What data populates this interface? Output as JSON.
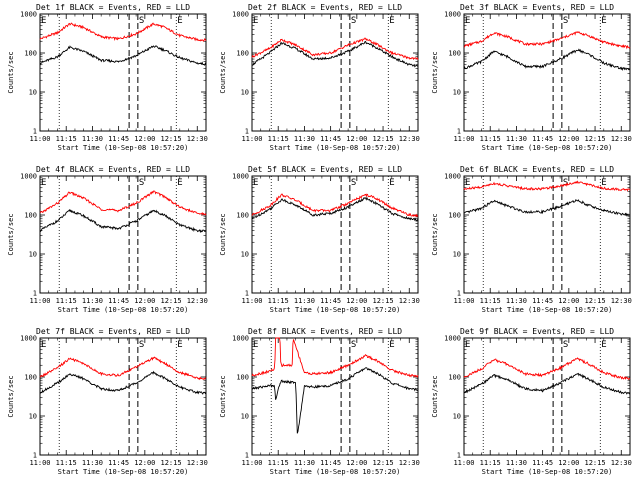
{
  "chart_data": {
    "type": "line",
    "yscale": "log",
    "ylim": [
      1,
      1000
    ],
    "xlim": [
      "11:00",
      "12:35"
    ],
    "x_ticks": [
      "11:00",
      "11:15",
      "11:30",
      "11:45",
      "12:00",
      "12:15",
      "12:30"
    ],
    "y_ticks": [
      "1",
      "10",
      "100",
      "1000"
    ],
    "y_ticks_first_row": [
      "1",
      "10",
      "100",
      "1000"
    ],
    "xlabel": "Start Time (10-Sep-08 10:57:20)",
    "ylabel": "Counts/sec",
    "colors": {
      "black": "#000000",
      "red": "#ff0000"
    },
    "panels": [
      {
        "title": "Det 1f BLACK = Events, RED = LLD",
        "markers": [
          {
            "label": "E",
            "time": "11:00"
          },
          {
            "label": "S",
            "time": "11:56"
          },
          {
            "label": "E",
            "time": "12:18"
          }
        ],
        "dotted_lines": [
          "11:11",
          "12:18"
        ],
        "dashed_lines": [
          "11:51",
          "11:56"
        ],
        "series": [
          {
            "color": "red",
            "values": {
              "x": [
                "11:00",
                "11:10",
                "11:17",
                "11:25",
                "11:35",
                "11:45",
                "11:55",
                "12:05",
                "12:11",
                "12:20",
                "12:30",
                "12:35"
              ],
              "y": [
                230,
                330,
                560,
                450,
                260,
                230,
                310,
                560,
                460,
                280,
                220,
                215
              ]
            }
          },
          {
            "color": "black",
            "values": {
              "x": [
                "11:00",
                "11:10",
                "11:17",
                "11:25",
                "11:35",
                "11:45",
                "11:55",
                "12:05",
                "12:11",
                "12:20",
                "12:30",
                "12:35"
              ],
              "y": [
                55,
                80,
                140,
                110,
                65,
                60,
                85,
                150,
                120,
                75,
                55,
                52
              ]
            }
          }
        ]
      },
      {
        "title": "Det 2f BLACK = Events, RED = LLD",
        "markers": [
          {
            "label": "E",
            "time": "11:00"
          },
          {
            "label": "S",
            "time": "11:56"
          },
          {
            "label": "E",
            "time": "12:18"
          }
        ],
        "dotted_lines": [
          "11:11",
          "12:18"
        ],
        "dashed_lines": [
          "11:51",
          "11:56"
        ],
        "series": [
          {
            "color": "red",
            "values": {
              "x": [
                "11:00",
                "11:10",
                "11:17",
                "11:25",
                "11:35",
                "11:45",
                "11:55",
                "12:05",
                "12:11",
                "12:20",
                "12:30",
                "12:35"
              ],
              "y": [
                80,
                130,
                220,
                160,
                90,
                100,
                160,
                230,
                170,
                100,
                75,
                70
              ]
            }
          },
          {
            "color": "black",
            "values": {
              "x": [
                "11:00",
                "11:10",
                "11:17",
                "11:25",
                "11:35",
                "11:45",
                "11:55",
                "12:05",
                "12:11",
                "12:20",
                "12:30",
                "12:35"
              ],
              "y": [
                50,
                100,
                180,
                130,
                70,
                75,
                110,
                190,
                140,
                80,
                50,
                45
              ]
            }
          }
        ]
      },
      {
        "title": "Det 3f BLACK = Events, RED = LLD",
        "markers": [
          {
            "label": "E",
            "time": "11:00"
          },
          {
            "label": "S",
            "time": "11:56"
          },
          {
            "label": "E",
            "time": "12:18"
          }
        ],
        "dotted_lines": [
          "11:11",
          "12:18"
        ],
        "dashed_lines": [
          "11:51",
          "11:56"
        ],
        "series": [
          {
            "color": "red",
            "values": {
              "x": [
                "11:00",
                "11:10",
                "11:17",
                "11:25",
                "11:35",
                "11:45",
                "11:55",
                "12:05",
                "12:11",
                "12:20",
                "12:30",
                "12:35"
              ],
              "y": [
                150,
                200,
                330,
                260,
                170,
                170,
                230,
                340,
                280,
                190,
                150,
                140
              ]
            }
          },
          {
            "color": "black",
            "values": {
              "x": [
                "11:00",
                "11:10",
                "11:17",
                "11:25",
                "11:35",
                "11:45",
                "11:55",
                "12:05",
                "12:11",
                "12:20",
                "12:30",
                "12:35"
              ],
              "y": [
                40,
                60,
                110,
                80,
                45,
                45,
                70,
                120,
                95,
                55,
                40,
                38
              ]
            }
          }
        ]
      },
      {
        "title": "Det 4f BLACK = Events, RED = LLD",
        "markers": [
          {
            "label": "E",
            "time": "11:00"
          },
          {
            "label": "S",
            "time": "11:56"
          },
          {
            "label": "E",
            "time": "12:18"
          }
        ],
        "dotted_lines": [
          "11:11",
          "12:18"
        ],
        "dashed_lines": [
          "11:51",
          "11:56"
        ],
        "series": [
          {
            "color": "red",
            "values": {
              "x": [
                "11:00",
                "11:10",
                "11:17",
                "11:25",
                "11:35",
                "11:45",
                "11:55",
                "12:05",
                "12:11",
                "12:20",
                "12:30",
                "12:35"
              ],
              "y": [
                110,
                200,
                380,
                270,
                140,
                130,
                200,
                400,
                300,
                160,
                110,
                105
              ]
            }
          },
          {
            "color": "black",
            "values": {
              "x": [
                "11:00",
                "11:10",
                "11:17",
                "11:25",
                "11:35",
                "11:45",
                "11:55",
                "12:05",
                "12:11",
                "12:20",
                "12:30",
                "12:35"
              ],
              "y": [
                40,
                70,
                130,
                95,
                50,
                45,
                70,
                130,
                100,
                55,
                40,
                38
              ]
            }
          }
        ]
      },
      {
        "title": "Det 5f BLACK = Events, RED = LLD",
        "markers": [
          {
            "label": "E",
            "time": "11:00"
          },
          {
            "label": "S",
            "time": "11:56"
          },
          {
            "label": "E",
            "time": "12:18"
          }
        ],
        "dotted_lines": [
          "11:11",
          "12:18"
        ],
        "dashed_lines": [
          "11:51",
          "11:56"
        ],
        "series": [
          {
            "color": "red",
            "values": {
              "x": [
                "11:00",
                "11:10",
                "11:17",
                "11:25",
                "11:35",
                "11:45",
                "11:55",
                "12:05",
                "12:11",
                "12:20",
                "12:30",
                "12:35"
              ],
              "y": [
                100,
                170,
                330,
                240,
                130,
                130,
                200,
                330,
                270,
                150,
                100,
                95
              ]
            }
          },
          {
            "color": "black",
            "values": {
              "x": [
                "11:00",
                "11:10",
                "11:17",
                "11:25",
                "11:35",
                "11:45",
                "11:55",
                "12:05",
                "12:11",
                "12:20",
                "12:30",
                "12:35"
              ],
              "y": [
                80,
                140,
                250,
                180,
                100,
                110,
                160,
                270,
                200,
                110,
                80,
                75
              ]
            }
          }
        ]
      },
      {
        "title": "Det 6f BLACK = Events, RED = LLD",
        "markers": [
          {
            "label": "E",
            "time": "11:00"
          },
          {
            "label": "S",
            "time": "11:56"
          },
          {
            "label": "E",
            "time": "12:18"
          }
        ],
        "dotted_lines": [
          "11:11",
          "12:18"
        ],
        "dashed_lines": [
          "11:51",
          "11:56"
        ],
        "series": [
          {
            "color": "red",
            "values": {
              "x": [
                "11:00",
                "11:10",
                "11:17",
                "11:25",
                "11:35",
                "11:45",
                "11:55",
                "12:05",
                "12:11",
                "12:20",
                "12:30",
                "12:35"
              ],
              "y": [
                460,
                520,
                650,
                560,
                470,
                470,
                560,
                700,
                610,
                480,
                450,
                445
              ]
            }
          },
          {
            "color": "black",
            "values": {
              "x": [
                "11:00",
                "11:10",
                "11:17",
                "11:25",
                "11:35",
                "11:45",
                "11:55",
                "12:05",
                "12:11",
                "12:20",
                "12:30",
                "12:35"
              ],
              "y": [
                110,
                150,
                230,
                170,
                120,
                120,
                165,
                240,
                180,
                130,
                105,
                100
              ]
            }
          }
        ]
      },
      {
        "title": "Det 7f BLACK = Events, RED = LLD",
        "markers": [
          {
            "label": "E",
            "time": "11:00"
          },
          {
            "label": "S",
            "time": "11:56"
          },
          {
            "label": "E",
            "time": "12:18"
          }
        ],
        "dotted_lines": [
          "11:11",
          "12:18"
        ],
        "dashed_lines": [
          "11:51",
          "11:56"
        ],
        "series": [
          {
            "color": "red",
            "values": {
              "x": [
                "11:00",
                "11:10",
                "11:17",
                "11:25",
                "11:35",
                "11:45",
                "11:55",
                "12:05",
                "12:11",
                "12:20",
                "12:30",
                "12:35"
              ],
              "y": [
                100,
                170,
                300,
                220,
                120,
                110,
                180,
                310,
                230,
                130,
                95,
                90
              ]
            }
          },
          {
            "color": "black",
            "values": {
              "x": [
                "11:00",
                "11:10",
                "11:17",
                "11:25",
                "11:35",
                "11:45",
                "11:55",
                "12:05",
                "12:11",
                "12:20",
                "12:30",
                "12:35"
              ],
              "y": [
                40,
                70,
                120,
                90,
                50,
                45,
                70,
                130,
                95,
                55,
                40,
                38
              ]
            }
          }
        ]
      },
      {
        "title": "Det 8f BLACK = Events, RED = LLD",
        "markers": [
          {
            "label": "E",
            "time": "11:00"
          },
          {
            "label": "S",
            "time": "11:56"
          },
          {
            "label": "E",
            "time": "12:18"
          }
        ],
        "dotted_lines": [
          "11:11",
          "12:18"
        ],
        "dashed_lines": [
          "11:51",
          "11:56"
        ],
        "series": [
          {
            "color": "red",
            "values": {
              "x": [
                "11:00",
                "11:10",
                "11:13",
                "11:13.5",
                "11:16",
                "11:16.5",
                "11:23",
                "11:23.5",
                "11:30",
                "11:35",
                "11:45",
                "11:55",
                "12:05",
                "12:11",
                "12:20",
                "12:30",
                "12:35"
              ],
              "y": [
                110,
                140,
                160,
                1000,
                1000,
                200,
                200,
                1000,
                130,
                120,
                130,
                200,
                350,
                270,
                150,
                110,
                105
              ]
            }
          },
          {
            "color": "black",
            "values": {
              "x": [
                "11:00",
                "11:10",
                "11:13",
                "11:13.5",
                "11:16",
                "11:17",
                "11:25",
                "11:26",
                "11:30",
                "11:35",
                "11:45",
                "11:55",
                "12:05",
                "12:11",
                "12:20",
                "12:30",
                "12:35"
              ],
              "y": [
                50,
                60,
                60,
                25,
                70,
                80,
                70,
                3,
                60,
                55,
                60,
                90,
                170,
                130,
                70,
                50,
                48
              ]
            }
          }
        ]
      },
      {
        "title": "Det 9f BLACK = Events, RED = LLD",
        "markers": [
          {
            "label": "E",
            "time": "11:00"
          },
          {
            "label": "S",
            "time": "11:56"
          },
          {
            "label": "E",
            "time": "12:18"
          }
        ],
        "dotted_lines": [
          "11:11",
          "12:18"
        ],
        "dashed_lines": [
          "11:51",
          "11:56"
        ],
        "series": [
          {
            "color": "red",
            "values": {
              "x": [
                "11:00",
                "11:10",
                "11:17",
                "11:25",
                "11:35",
                "11:45",
                "11:55",
                "12:05",
                "12:11",
                "12:20",
                "12:30",
                "12:35"
              ],
              "y": [
                100,
                160,
                280,
                210,
                120,
                110,
                170,
                300,
                220,
                130,
                95,
                90
              ]
            }
          },
          {
            "color": "black",
            "values": {
              "x": [
                "11:00",
                "11:10",
                "11:17",
                "11:25",
                "11:35",
                "11:45",
                "11:55",
                "12:05",
                "12:11",
                "12:20",
                "12:30",
                "12:35"
              ],
              "y": [
                40,
                65,
                110,
                85,
                50,
                45,
                70,
                120,
                90,
                55,
                40,
                38
              ]
            }
          }
        ]
      }
    ]
  }
}
